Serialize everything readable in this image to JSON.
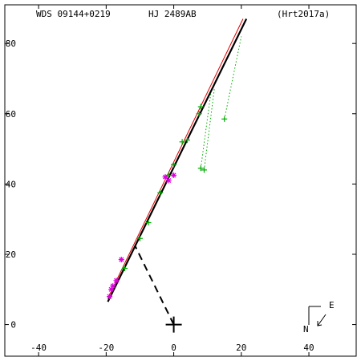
{
  "header": {
    "left": "WDS 09144+0219",
    "center": "HJ 2489AB",
    "right": "(Hrt2017a)"
  },
  "compass": {
    "north": "N",
    "east": "E"
  },
  "chart_data": {
    "type": "scatter",
    "title": "",
    "xlabel": "",
    "ylabel": "",
    "xlim": [
      -50,
      54
    ],
    "ylim": [
      -9,
      91
    ],
    "xticks": [
      -40,
      -20,
      0,
      20,
      40
    ],
    "yticks": [
      0,
      20,
      40,
      60,
      80
    ],
    "x_tick_labels": [
      "-40",
      "-20",
      "0",
      "20",
      "40"
    ],
    "y_tick_labels": [
      "0",
      "20",
      "40",
      "60",
      "80"
    ],
    "grid": false,
    "legend": "none",
    "colors": {
      "fit_orbit": "#000000",
      "alt_orbit": "#dd0000",
      "micrometry": "#00aa00",
      "speckle": "#dd00dd",
      "residual": "#00aa00",
      "node_line": "#000000",
      "primary": "#000000"
    },
    "fit_orbit": [
      [
        -19.5,
        6.5
      ],
      [
        21.5,
        87
      ]
    ],
    "alt_orbit": [
      [
        -19.5,
        7.5
      ],
      [
        20.5,
        87
      ]
    ],
    "micrometry_points": [
      [
        -14.5,
        16
      ],
      [
        -10,
        24.5
      ],
      [
        -7.5,
        29
      ],
      [
        -4,
        37.5
      ],
      [
        -1.5,
        42.5
      ],
      [
        0,
        45.5
      ],
      [
        2.5,
        52
      ],
      [
        4,
        52.5
      ],
      [
        7.5,
        60
      ],
      [
        8,
        62
      ],
      [
        8,
        44.5
      ],
      [
        9,
        44
      ],
      [
        15,
        58.5
      ]
    ],
    "speckle_points": [
      [
        -19,
        8
      ],
      [
        -18.5,
        10
      ],
      [
        -18,
        11
      ],
      [
        -17,
        12.5
      ],
      [
        -15.5,
        18.5
      ],
      [
        -2.5,
        42
      ],
      [
        -1.5,
        41
      ],
      [
        0,
        42.5
      ]
    ],
    "residuals": [
      [
        [
          8,
          44.5
        ],
        [
          11,
          66
        ]
      ],
      [
        [
          9,
          44
        ],
        [
          12,
          67
        ]
      ],
      [
        [
          15,
          58.5
        ],
        [
          20,
          82
        ]
      ]
    ],
    "line_of_nodes": [
      [
        0,
        0
      ],
      [
        -11.5,
        22.5
      ]
    ],
    "primary": [
      0,
      0
    ]
  }
}
